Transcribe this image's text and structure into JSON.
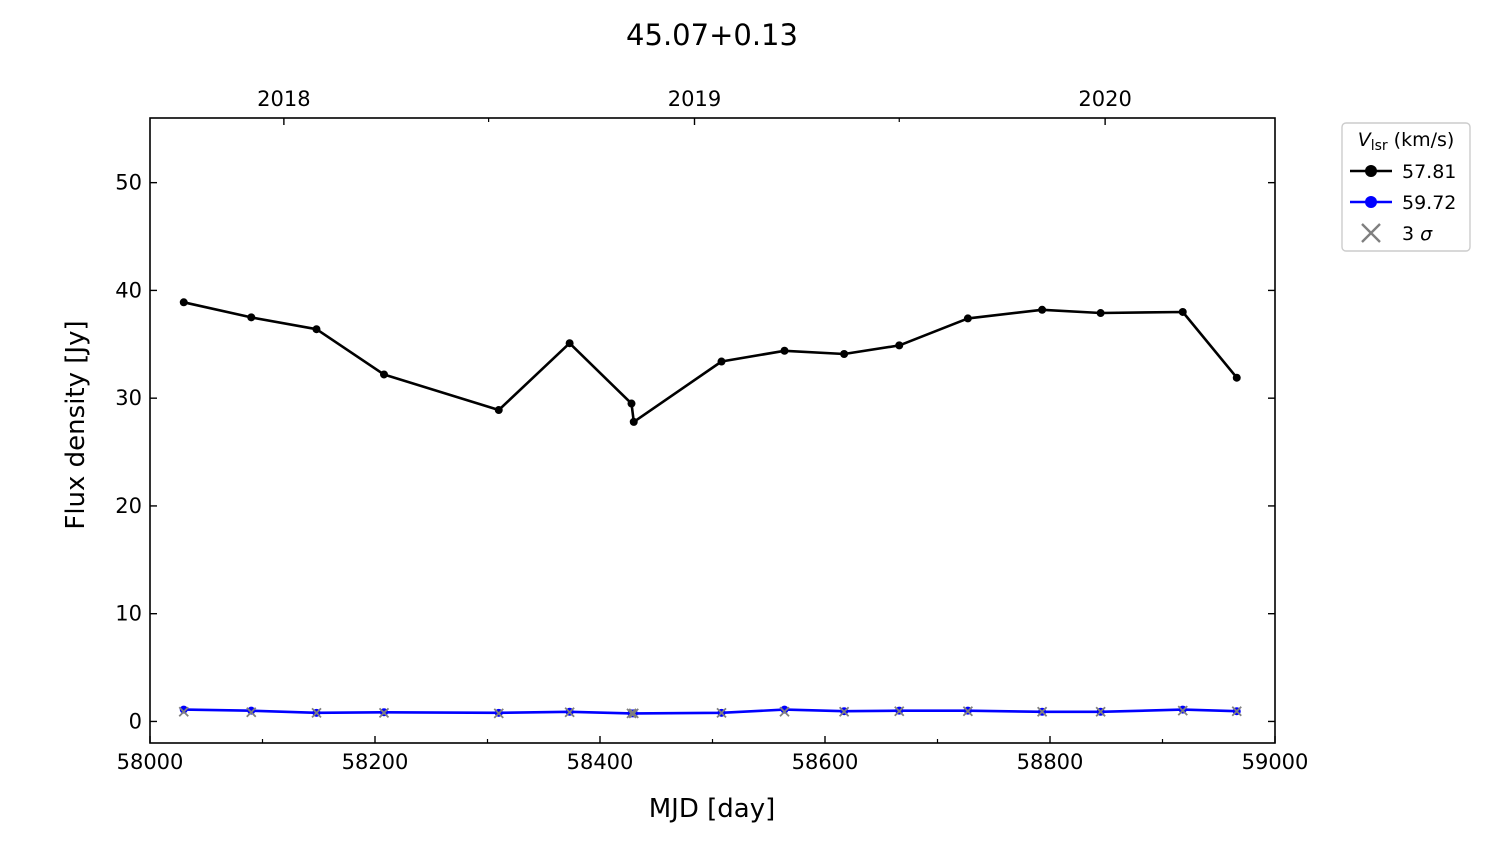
{
  "chart_data": {
    "type": "line",
    "title": "45.07+0.13",
    "xlabel": "MJD [day]",
    "ylabel": "Flux density [Jy]",
    "xlim": [
      58000,
      59000
    ],
    "ylim": [
      -2,
      56
    ],
    "x_ticks": [
      58000,
      58200,
      58400,
      58600,
      58800,
      59000
    ],
    "x_minor_ticks": [
      58100,
      58300,
      58500,
      58700,
      58900
    ],
    "y_ticks": [
      0,
      10,
      20,
      30,
      40,
      50
    ],
    "top_axis": {
      "labels": [
        "2018",
        "2019",
        "2020"
      ],
      "mjd": [
        58119,
        58484,
        58849
      ],
      "minor_mjd": [
        58301,
        58666
      ]
    },
    "grid": false,
    "legend": {
      "placement": "outside-right-top",
      "title_main": "V",
      "title_sub": "lsr",
      "title_unit": "(km/s)",
      "sigma_label": "3 σ",
      "sigma_color": "#7f7f7f"
    },
    "x": [
      58030,
      58090,
      58148,
      58208,
      58310,
      58373,
      58428,
      58430,
      58508,
      58564,
      58617,
      58666,
      58727,
      58793,
      58845,
      58918,
      58966
    ],
    "series": [
      {
        "name": "57.81",
        "color": "#000000",
        "values": [
          38.9,
          37.5,
          36.4,
          32.2,
          28.9,
          35.1,
          29.5,
          27.8,
          33.4,
          34.4,
          34.1,
          34.9,
          37.4,
          38.2,
          37.9,
          38.0,
          31.9
        ]
      },
      {
        "name": "59.72",
        "color": "#0000ff",
        "values": [
          1.1,
          1.0,
          0.8,
          0.85,
          0.8,
          0.9,
          0.75,
          0.75,
          0.8,
          1.1,
          0.95,
          1.0,
          1.0,
          0.9,
          0.9,
          1.1,
          0.95
        ]
      }
    ],
    "sigma3": [
      0.9,
      0.85,
      0.8,
      0.8,
      0.75,
      0.85,
      0.75,
      0.75,
      0.8,
      0.9,
      0.9,
      0.95,
      0.95,
      0.9,
      0.9,
      1.0,
      0.95
    ]
  }
}
